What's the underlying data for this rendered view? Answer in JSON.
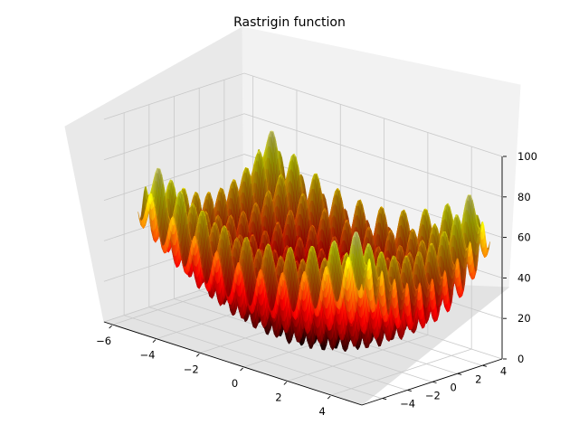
{
  "chart_data": {
    "type": "surface3d",
    "title": "Rastrigin function",
    "function": "z = 20 + x^2 - 10*cos(2*pi*x) + y^2 - 10*cos(2*pi*y)",
    "x_range": [
      -5.12,
      5.12
    ],
    "y_range": [
      -5.12,
      5.12
    ],
    "grid_step": 0.08,
    "zlim": [
      0,
      100
    ],
    "colormap": "hot",
    "x_ticks": [
      "−6",
      "−4",
      "−2",
      "0",
      "2",
      "4"
    ],
    "y_ticks": [
      "−4",
      "−2",
      "0",
      "2",
      "4"
    ],
    "z_ticks": [
      "0",
      "20",
      "40",
      "60",
      "80",
      "100"
    ],
    "pane_color": "#f2f2f2",
    "grid_color": "#c9c9c9"
  }
}
